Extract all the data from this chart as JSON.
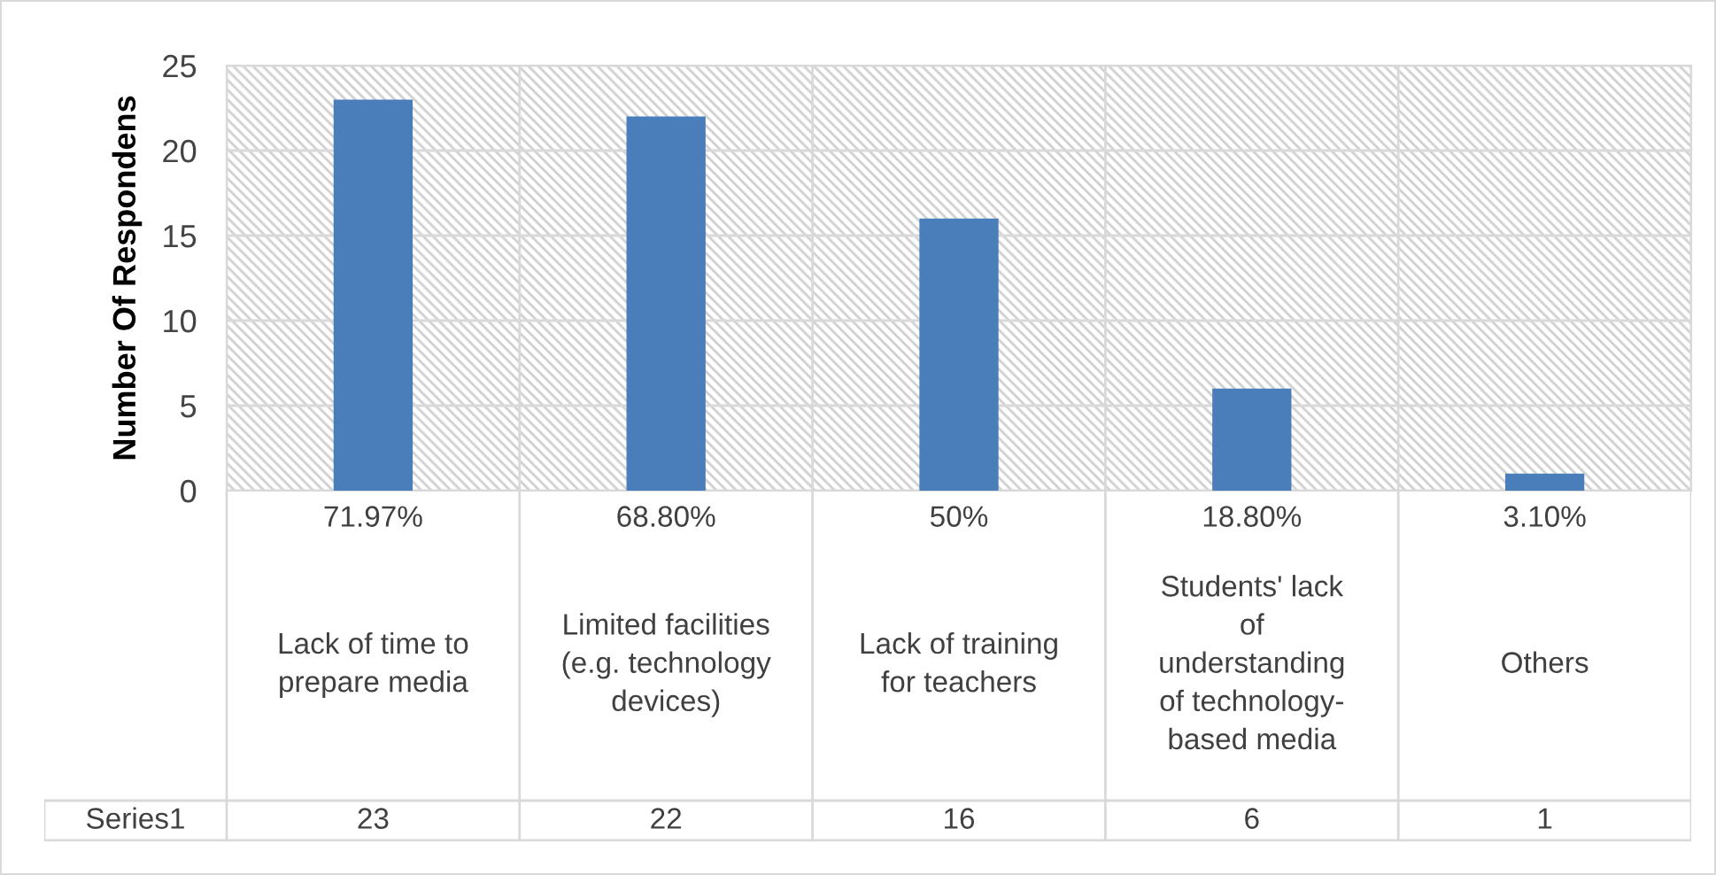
{
  "chart_data": {
    "type": "bar",
    "ylabel": "Number Of Respondens",
    "categories": [
      "Lack of time to\nprepare media",
      "Limited facilities\n(e.g. technology\ndevices)",
      "Lack of training\nfor teachers",
      "Students' lack\nof\nunderstanding\nof technology-\nbased media",
      "Others"
    ],
    "series": [
      {
        "name": "Series1",
        "color": "#4a7ebb",
        "values": [
          23,
          22,
          16,
          6,
          1
        ]
      }
    ],
    "annotations": [
      "71.97%",
      "68.80%",
      "50%",
      "18.80%",
      "3.10%"
    ],
    "ylim": [
      0,
      25
    ],
    "yticks": [
      0,
      5,
      10,
      15,
      20,
      25
    ],
    "grid": true,
    "data_labels": true,
    "legend": false
  }
}
